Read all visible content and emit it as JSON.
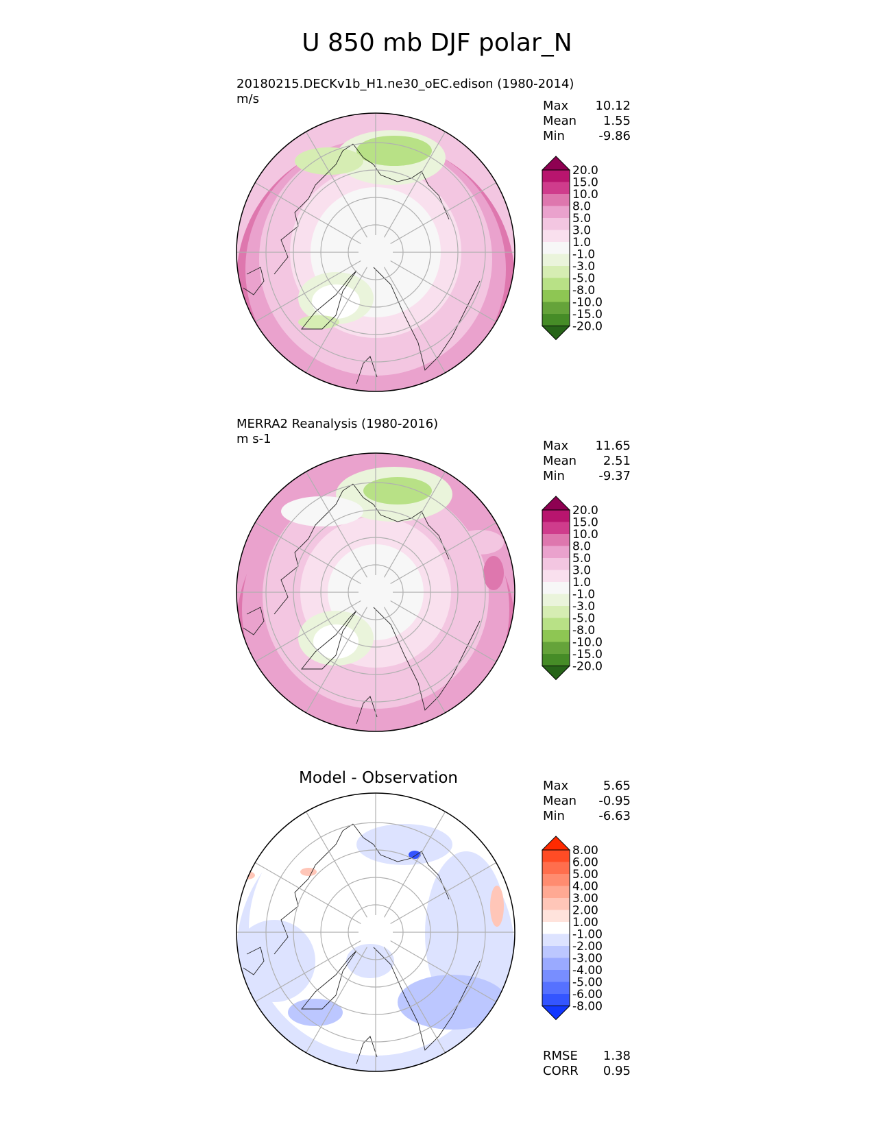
{
  "title": "U 850 mb DJF polar_N",
  "panels": [
    {
      "id": "model",
      "title": "20180215.DECKv1b_H1.ne30_oEC.edison (1980-2014)",
      "units": "m/s",
      "stats": [
        {
          "label": "Max",
          "value": "10.12"
        },
        {
          "label": "Mean",
          "value": "1.55"
        },
        {
          "label": "Min",
          "value": "-9.86"
        }
      ],
      "colorbar": {
        "labels": [
          "20.0",
          "15.0",
          "10.0",
          "8.0",
          "5.0",
          "3.0",
          "1.0",
          "-1.0",
          "-3.0",
          "-5.0",
          "-8.0",
          "-10.0",
          "-15.0",
          "-20.0"
        ],
        "colors": [
          "#8e0152",
          "#b8156e",
          "#cf3c8c",
          "#de77ae",
          "#eaa2cd",
          "#f3c6e1",
          "#f9e0ee",
          "#f7f7f7",
          "#eaf4db",
          "#d6edb3",
          "#b8e186",
          "#8ec653",
          "#65a33a",
          "#468c27",
          "#276419"
        ]
      }
    },
    {
      "id": "obs",
      "title": "MERRA2 Reanalysis (1980-2016)",
      "units": "m s-1",
      "stats": [
        {
          "label": "Max",
          "value": "11.65"
        },
        {
          "label": "Mean",
          "value": "2.51"
        },
        {
          "label": "Min",
          "value": "-9.37"
        }
      ],
      "colorbar": {
        "labels": [
          "20.0",
          "15.0",
          "10.0",
          "8.0",
          "5.0",
          "3.0",
          "1.0",
          "-1.0",
          "-3.0",
          "-5.0",
          "-8.0",
          "-10.0",
          "-15.0",
          "-20.0"
        ],
        "colors": [
          "#8e0152",
          "#b8156e",
          "#cf3c8c",
          "#de77ae",
          "#eaa2cd",
          "#f3c6e1",
          "#f9e0ee",
          "#f7f7f7",
          "#eaf4db",
          "#d6edb3",
          "#b8e186",
          "#8ec653",
          "#65a33a",
          "#468c27",
          "#276419"
        ]
      }
    },
    {
      "id": "diff",
      "title": "Model - Observation",
      "stats": [
        {
          "label": "Max",
          "value": "5.65"
        },
        {
          "label": "Mean",
          "value": "-0.95"
        },
        {
          "label": "Min",
          "value": "-6.63"
        }
      ],
      "extra_stats": [
        {
          "label": "RMSE",
          "value": "1.38"
        },
        {
          "label": "CORR",
          "value": "0.95"
        }
      ],
      "colorbar": {
        "labels": [
          "8.00",
          "6.00",
          "5.00",
          "4.00",
          "3.00",
          "2.00",
          "1.00",
          "-1.00",
          "-2.00",
          "-3.00",
          "-4.00",
          "-5.00",
          "-6.00",
          "-8.00"
        ],
        "colors": [
          "#ff2a00",
          "#ff4c25",
          "#ff6e4d",
          "#ff8c70",
          "#ffa993",
          "#ffc6b8",
          "#ffe3dc",
          "#ffffff",
          "#dde3ff",
          "#bcc7ff",
          "#9aaaff",
          "#788eff",
          "#5671ff",
          "#3455ff",
          "#1238ff"
        ]
      }
    }
  ],
  "chart_data": [
    {
      "type": "heatmap",
      "title": "20180215.DECKv1b_H1.ne30_oEC.edison (1980-2014)",
      "units": "m/s",
      "projection": "north polar stereographic",
      "max": 10.12,
      "mean": 1.55,
      "min": -9.86,
      "levels": [
        -20.0,
        -15.0,
        -10.0,
        -8.0,
        -5.0,
        -3.0,
        -1.0,
        1.0,
        3.0,
        5.0,
        8.0,
        10.0,
        15.0,
        20.0
      ],
      "colorbar_extend": "both"
    },
    {
      "type": "heatmap",
      "title": "MERRA2 Reanalysis (1980-2016)",
      "units": "m s-1",
      "projection": "north polar stereographic",
      "max": 11.65,
      "mean": 2.51,
      "min": -9.37,
      "levels": [
        -20.0,
        -15.0,
        -10.0,
        -8.0,
        -5.0,
        -3.0,
        -1.0,
        1.0,
        3.0,
        5.0,
        8.0,
        10.0,
        15.0,
        20.0
      ],
      "colorbar_extend": "both"
    },
    {
      "type": "heatmap",
      "title": "Model - Observation",
      "projection": "north polar stereographic",
      "max": 5.65,
      "mean": -0.95,
      "min": -6.63,
      "rmse": 1.38,
      "corr": 0.95,
      "levels": [
        -8.0,
        -6.0,
        -5.0,
        -4.0,
        -3.0,
        -2.0,
        -1.0,
        1.0,
        2.0,
        3.0,
        4.0,
        5.0,
        6.0,
        8.0
      ],
      "colorbar_extend": "both"
    }
  ]
}
